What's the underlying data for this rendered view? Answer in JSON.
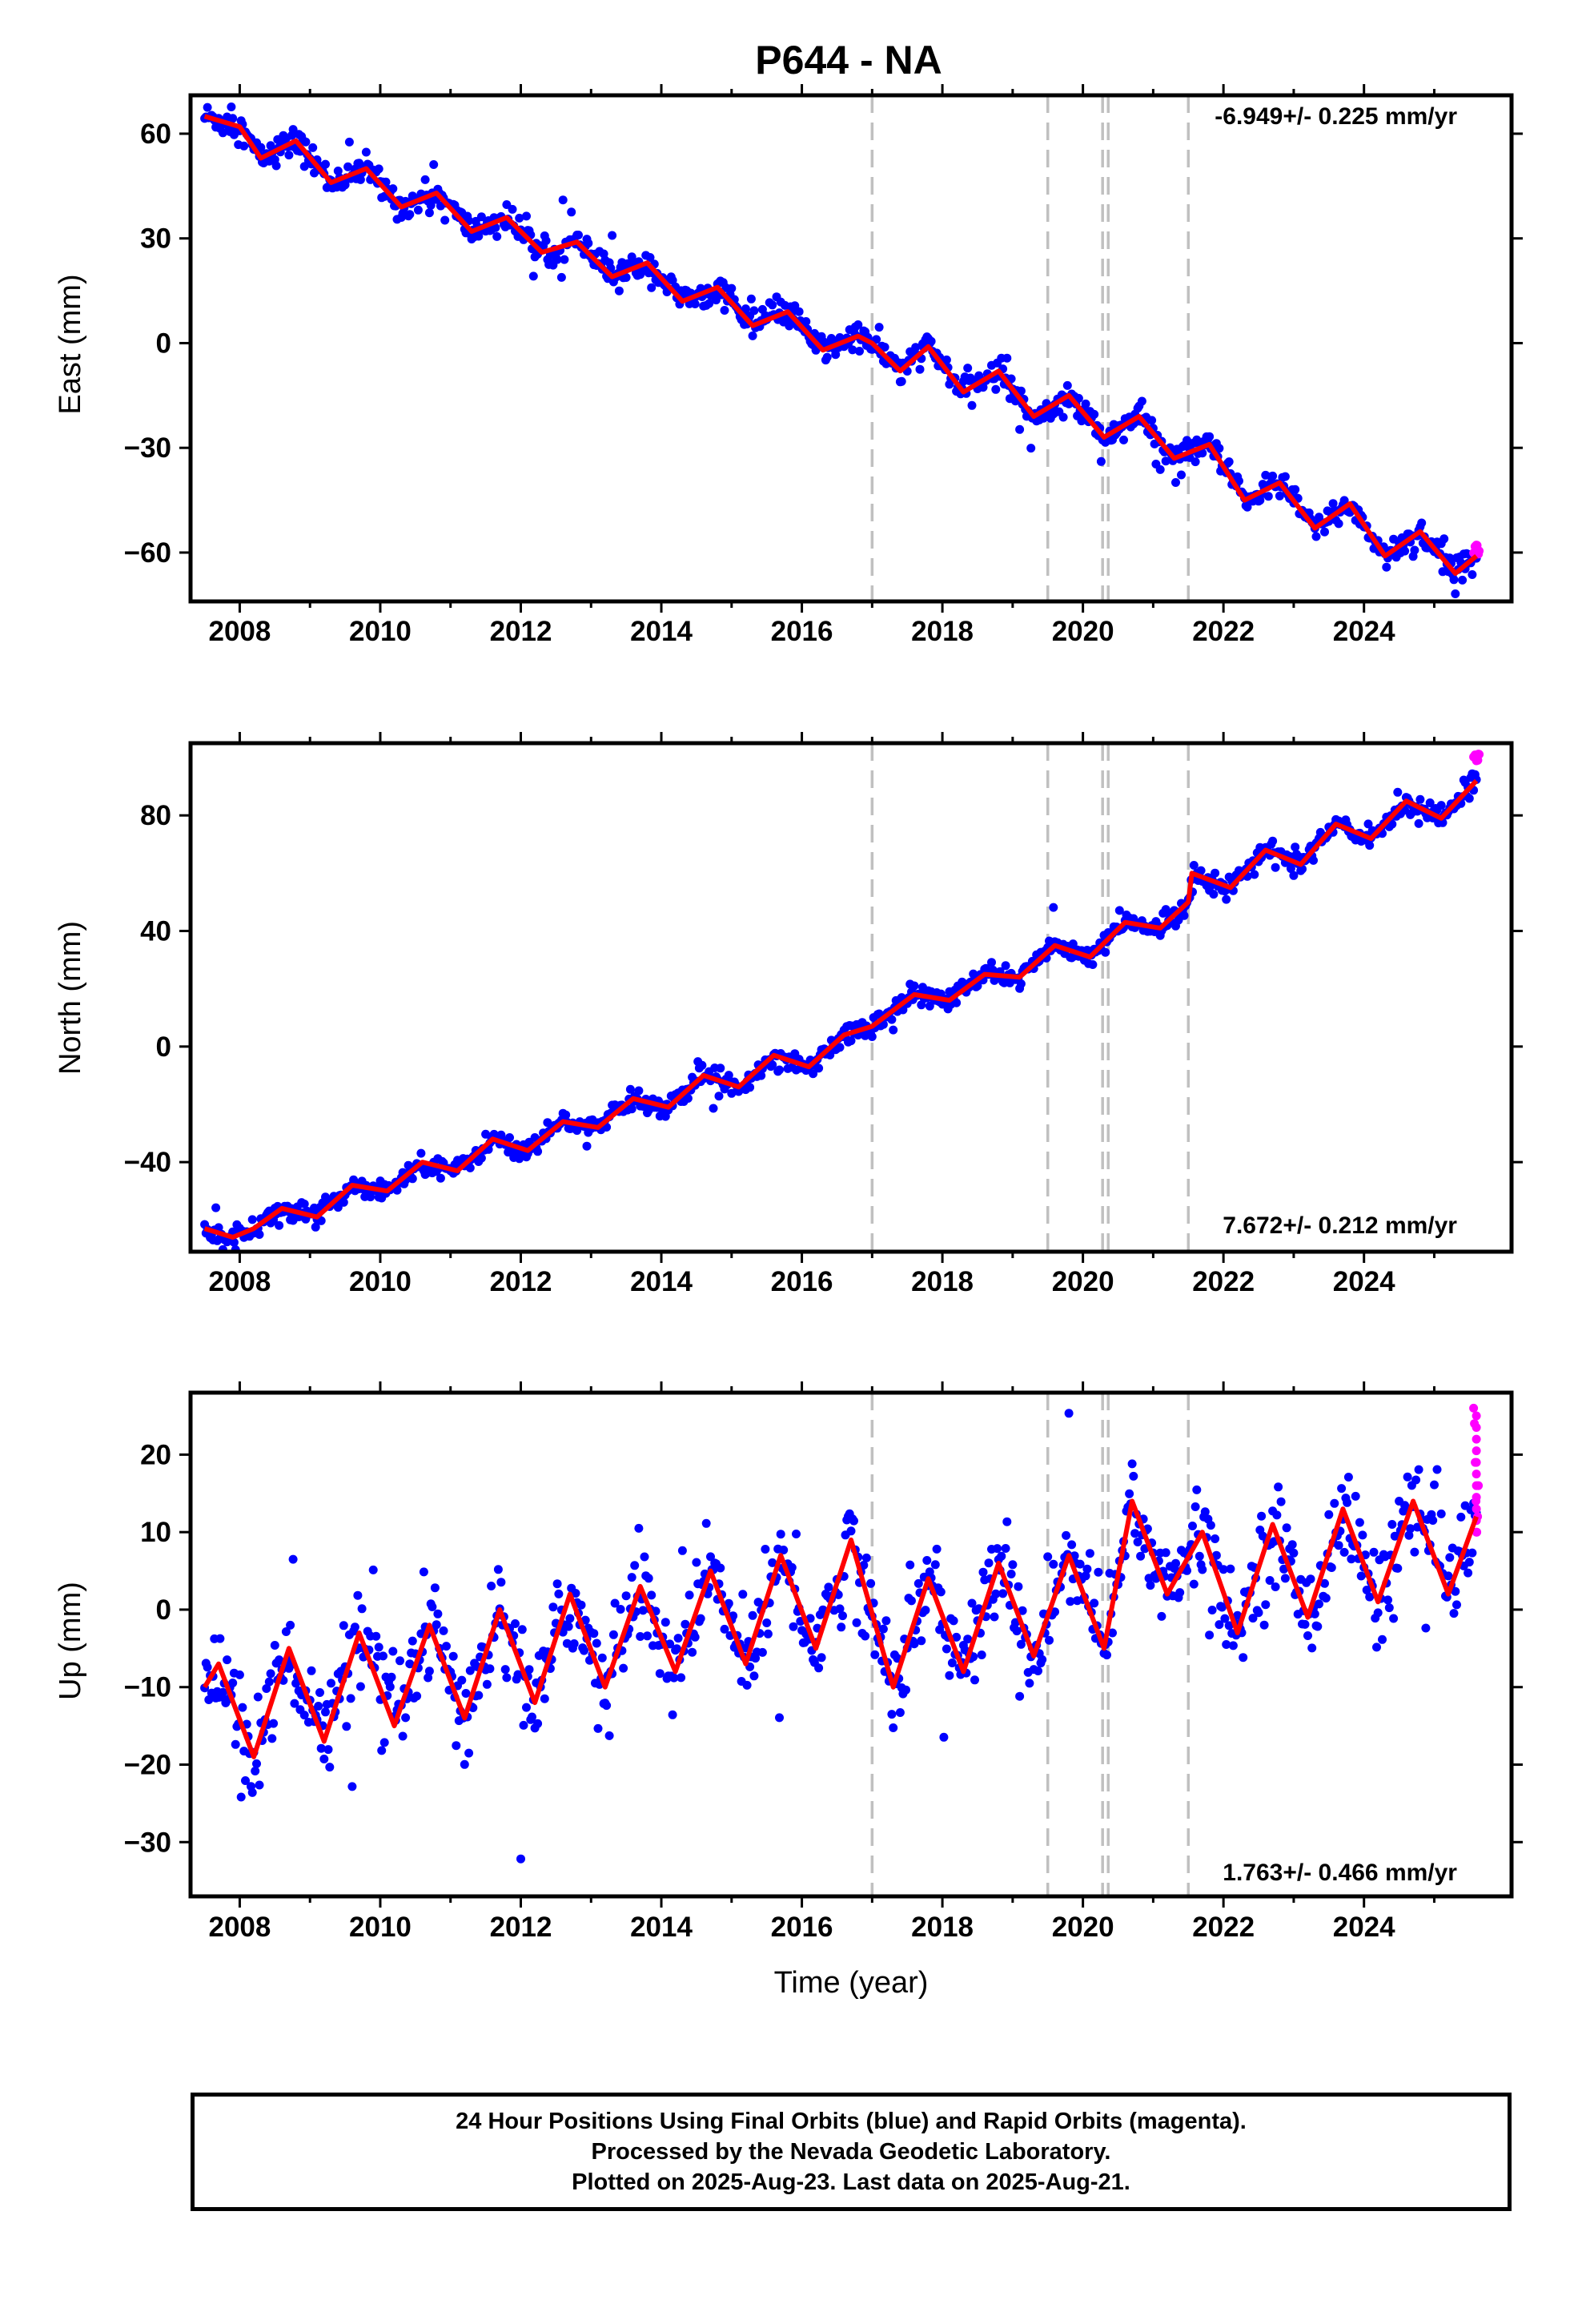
{
  "title": "P644 - NA",
  "colors": {
    "final_points": "#0000ff",
    "rapid_points": "#ff00ff",
    "model": "#ff0000",
    "event_lines": "#c0c0c0"
  },
  "footer": {
    "line1": "24 Hour Positions Using Final Orbits (blue) and Rapid Orbits (magenta).",
    "line2": "Processed by the Nevada Geodetic Laboratory.",
    "line3": "Plotted on 2025-Aug-23. Last data on 2025-Aug-21."
  },
  "chart_data": [
    {
      "type": "scatter",
      "component": "East",
      "ylabel": "East (mm)",
      "xlabel": "",
      "xlim": [
        2007.3,
        2026.1
      ],
      "ylim": [
        -74,
        71
      ],
      "x_ticks": [
        "2008",
        "2010",
        "2012",
        "2014",
        "2016",
        "2018",
        "2020",
        "2022",
        "2024"
      ],
      "y_ticks": [
        "60",
        "30",
        "0",
        "−30",
        "−60"
      ],
      "rate_label": "-6.949+/- 0.225 mm/yr",
      "rate_value": -6.949,
      "rate_sigma": 0.225,
      "intercept_2016_5": 0.0,
      "seasonal_amplitude": 3.8,
      "seasonal_phase": 0.15,
      "noise": 2.0,
      "offsets": [
        {
          "x": 2017.0,
          "dy": -6
        }
      ],
      "event_lines": [
        2017.0,
        2019.5,
        2020.28,
        2020.36,
        2021.5
      ],
      "series": [
        {
          "name": "Final Orbits",
          "x_range": [
            2007.5,
            2025.6
          ],
          "step": 0.02
        },
        {
          "name": "Rapid Orbits",
          "x_range": [
            2025.56,
            2025.64
          ],
          "step": 0.01
        }
      ],
      "model_points": [
        [
          2007.5,
          65
        ],
        [
          2008.0,
          62
        ],
        [
          2008.3,
          53
        ],
        [
          2008.8,
          58
        ],
        [
          2009.3,
          46
        ],
        [
          2009.8,
          50
        ],
        [
          2010.3,
          39
        ],
        [
          2010.8,
          43
        ],
        [
          2011.3,
          32
        ],
        [
          2011.8,
          36
        ],
        [
          2012.3,
          26
        ],
        [
          2012.8,
          29
        ],
        [
          2013.3,
          19
        ],
        [
          2013.8,
          23
        ],
        [
          2014.3,
          12
        ],
        [
          2014.8,
          16
        ],
        [
          2015.3,
          5
        ],
        [
          2015.8,
          9
        ],
        [
          2016.3,
          -2
        ],
        [
          2016.8,
          2
        ],
        [
          2017.0,
          0
        ],
        [
          2017.4,
          -8
        ],
        [
          2017.8,
          -1
        ],
        [
          2018.3,
          -14
        ],
        [
          2018.8,
          -8
        ],
        [
          2019.3,
          -21
        ],
        [
          2019.8,
          -15
        ],
        [
          2020.3,
          -27
        ],
        [
          2020.8,
          -21
        ],
        [
          2021.3,
          -33
        ],
        [
          2021.8,
          -29
        ],
        [
          2022.3,
          -45
        ],
        [
          2022.8,
          -40
        ],
        [
          2023.3,
          -53
        ],
        [
          2023.8,
          -46
        ],
        [
          2024.3,
          -61
        ],
        [
          2024.8,
          -54
        ],
        [
          2025.3,
          -66
        ],
        [
          2025.6,
          -61
        ]
      ]
    },
    {
      "type": "scatter",
      "component": "North",
      "ylabel": "North (mm)",
      "xlabel": "",
      "xlim": [
        2007.3,
        2026.1
      ],
      "ylim": [
        -71,
        105
      ],
      "x_ticks": [
        "2008",
        "2010",
        "2012",
        "2014",
        "2016",
        "2018",
        "2020",
        "2022",
        "2024"
      ],
      "y_ticks": [
        "80",
        "40",
        "0",
        "−40"
      ],
      "rate_label": "7.672+/- 0.212 mm/yr",
      "rate_value": 7.672,
      "rate_sigma": 0.212,
      "intercept_2016_5": 0.0,
      "seasonal_amplitude": 2.5,
      "seasonal_phase": 0.55,
      "noise": 1.8,
      "offsets": [],
      "event_lines": [
        2017.0,
        2019.5,
        2020.28,
        2020.36,
        2021.5
      ],
      "series": [
        {
          "name": "Final Orbits",
          "x_range": [
            2007.5,
            2025.6
          ],
          "step": 0.02
        },
        {
          "name": "Rapid Orbits",
          "x_range": [
            2025.56,
            2025.64
          ],
          "step": 0.01
        }
      ],
      "model_points": [
        [
          2007.5,
          -63
        ],
        [
          2007.9,
          -66
        ],
        [
          2008.2,
          -63
        ],
        [
          2008.6,
          -56
        ],
        [
          2009.1,
          -59
        ],
        [
          2009.6,
          -48
        ],
        [
          2010.1,
          -50
        ],
        [
          2010.6,
          -40
        ],
        [
          2011.1,
          -43
        ],
        [
          2011.6,
          -32
        ],
        [
          2012.1,
          -36
        ],
        [
          2012.6,
          -26
        ],
        [
          2013.1,
          -28
        ],
        [
          2013.6,
          -18
        ],
        [
          2014.1,
          -21
        ],
        [
          2014.6,
          -10
        ],
        [
          2015.1,
          -14
        ],
        [
          2015.6,
          -3
        ],
        [
          2016.1,
          -7
        ],
        [
          2016.6,
          4
        ],
        [
          2017.0,
          7
        ],
        [
          2017.6,
          18
        ],
        [
          2018.1,
          16
        ],
        [
          2018.6,
          25
        ],
        [
          2019.1,
          24
        ],
        [
          2019.6,
          35
        ],
        [
          2020.1,
          31
        ],
        [
          2020.6,
          43
        ],
        [
          2021.1,
          41
        ],
        [
          2021.5,
          50
        ],
        [
          2021.55,
          60
        ],
        [
          2022.1,
          55
        ],
        [
          2022.6,
          68
        ],
        [
          2023.1,
          63
        ],
        [
          2023.6,
          77
        ],
        [
          2024.1,
          72
        ],
        [
          2024.6,
          85
        ],
        [
          2025.1,
          79
        ],
        [
          2025.6,
          92
        ]
      ]
    },
    {
      "type": "scatter",
      "component": "Up",
      "ylabel": "Up (mm)",
      "xlabel": "Time (year)",
      "xlim": [
        2007.3,
        2026.1
      ],
      "ylim": [
        -37,
        28
      ],
      "x_ticks": [
        "2008",
        "2010",
        "2012",
        "2014",
        "2016",
        "2018",
        "2020",
        "2022",
        "2024"
      ],
      "y_ticks": [
        "20",
        "10",
        "0",
        "−10",
        "−20",
        "−30"
      ],
      "rate_label": "1.763+/- 0.466 mm/yr",
      "rate_value": 1.763,
      "rate_sigma": 0.466,
      "intercept_2016_5": 0.0,
      "seasonal_amplitude": 6.5,
      "seasonal_phase": 0.0,
      "noise": 3.2,
      "offsets": [],
      "event_lines": [
        2017.0,
        2019.5,
        2020.28,
        2020.36,
        2021.5
      ],
      "series": [
        {
          "name": "Final Orbits",
          "x_range": [
            2007.5,
            2025.6
          ],
          "step": 0.02
        },
        {
          "name": "Rapid Orbits",
          "x_range": [
            2025.56,
            2025.64
          ],
          "step": 0.01
        }
      ],
      "model_points": [
        [
          2007.5,
          -10
        ],
        [
          2007.7,
          -7
        ],
        [
          2008.2,
          -19
        ],
        [
          2008.7,
          -5
        ],
        [
          2009.2,
          -17
        ],
        [
          2009.7,
          -3
        ],
        [
          2010.2,
          -15
        ],
        [
          2010.7,
          -2
        ],
        [
          2011.2,
          -14
        ],
        [
          2011.7,
          0
        ],
        [
          2012.2,
          -12
        ],
        [
          2012.7,
          2
        ],
        [
          2013.2,
          -10
        ],
        [
          2013.7,
          3
        ],
        [
          2014.2,
          -8
        ],
        [
          2014.7,
          5
        ],
        [
          2015.2,
          -7
        ],
        [
          2015.7,
          7
        ],
        [
          2016.2,
          -5
        ],
        [
          2016.7,
          9
        ],
        [
          2017.3,
          -10
        ],
        [
          2017.8,
          4
        ],
        [
          2018.3,
          -8
        ],
        [
          2018.8,
          6
        ],
        [
          2019.3,
          -6
        ],
        [
          2019.8,
          7
        ],
        [
          2020.3,
          -5
        ],
        [
          2020.7,
          14
        ],
        [
          2021.2,
          2
        ],
        [
          2021.7,
          10
        ],
        [
          2022.2,
          -3
        ],
        [
          2022.7,
          11
        ],
        [
          2023.2,
          -1
        ],
        [
          2023.7,
          13
        ],
        [
          2024.2,
          1
        ],
        [
          2024.7,
          14
        ],
        [
          2025.2,
          2
        ],
        [
          2025.6,
          12
        ]
      ],
      "rapid_values": [
        26,
        24,
        19,
        14,
        10,
        12,
        16
      ]
    }
  ]
}
